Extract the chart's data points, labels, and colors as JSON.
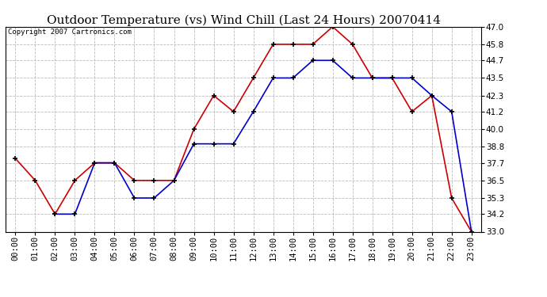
{
  "title": "Outdoor Temperature (vs) Wind Chill (Last 24 Hours) 20070414",
  "copyright": "Copyright 2007 Cartronics.com",
  "hours": [
    "00:00",
    "01:00",
    "02:00",
    "03:00",
    "04:00",
    "05:00",
    "06:00",
    "07:00",
    "08:00",
    "09:00",
    "10:00",
    "11:00",
    "12:00",
    "13:00",
    "14:00",
    "15:00",
    "16:00",
    "17:00",
    "18:00",
    "19:00",
    "20:00",
    "21:00",
    "22:00",
    "23:00"
  ],
  "temp": [
    38.0,
    36.5,
    34.2,
    36.5,
    37.7,
    37.7,
    36.5,
    36.5,
    36.5,
    40.0,
    42.3,
    41.2,
    43.5,
    45.8,
    45.8,
    45.8,
    47.0,
    45.8,
    43.5,
    43.5,
    41.2,
    42.3,
    35.3,
    33.0
  ],
  "windchill": [
    null,
    null,
    34.2,
    34.2,
    37.7,
    37.7,
    35.3,
    35.3,
    36.5,
    39.0,
    39.0,
    39.0,
    41.2,
    43.5,
    43.5,
    44.7,
    44.7,
    43.5,
    43.5,
    43.5,
    43.5,
    42.3,
    41.2,
    33.0
  ],
  "ylim_min": 33.0,
  "ylim_max": 47.0,
  "yticks": [
    33.0,
    34.2,
    35.3,
    36.5,
    37.7,
    38.8,
    40.0,
    41.2,
    42.3,
    43.5,
    44.7,
    45.8,
    47.0
  ],
  "temp_color": "#cc0000",
  "windchill_color": "#0000cc",
  "background_color": "#ffffff",
  "grid_color": "#bbbbbb",
  "title_fontsize": 11,
  "copyright_fontsize": 6.5,
  "tick_fontsize": 7.5
}
